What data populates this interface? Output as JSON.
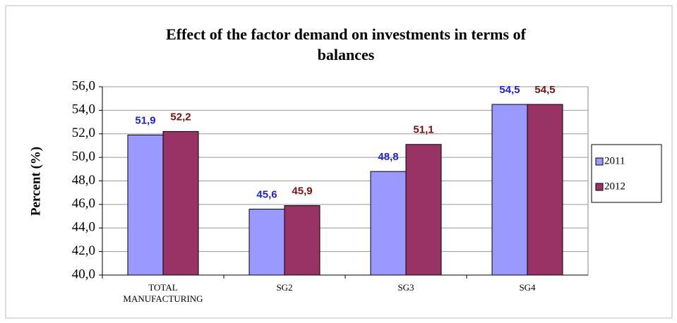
{
  "chart_data": {
    "type": "bar",
    "title": "Effect of the factor demand on investments in terms of balances",
    "y_label": "Percent (%)",
    "categories": [
      "TOTAL MANUFACTURING",
      "SG2",
      "SG3",
      "SG4"
    ],
    "series": [
      {
        "name": "2011",
        "color": "#9999ff",
        "label_color": "#1f1fe0",
        "values": [
          51.9,
          45.6,
          48.8,
          54.5
        ],
        "value_labels": [
          "51,9",
          "45,6",
          "48,8",
          "54,5"
        ]
      },
      {
        "name": "2012",
        "color": "#993366",
        "label_color": "#7a1010",
        "values": [
          52.2,
          45.9,
          51.1,
          54.5
        ],
        "value_labels": [
          "52,2",
          "45,9",
          "51,1",
          "54,5"
        ]
      }
    ],
    "ylim": [
      40,
      56
    ],
    "yticks": [
      {
        "value": 40,
        "label": "40,0"
      },
      {
        "value": 42,
        "label": "42,0"
      },
      {
        "value": 44,
        "label": "44,0"
      },
      {
        "value": 46,
        "label": "46,0"
      },
      {
        "value": 48,
        "label": "48,0"
      },
      {
        "value": 50,
        "label": "50,0"
      },
      {
        "value": 52,
        "label": "52,0"
      },
      {
        "value": 54,
        "label": "54,0"
      },
      {
        "value": 56,
        "label": "56,0"
      }
    ],
    "grid": true,
    "legend": "right"
  }
}
